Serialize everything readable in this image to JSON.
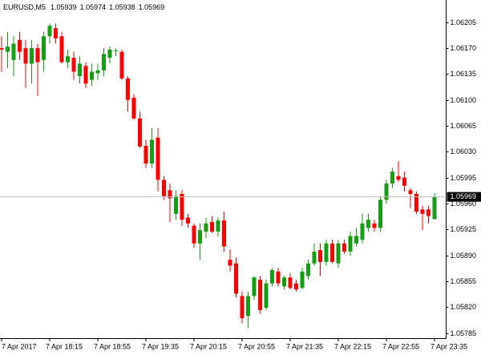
{
  "chart_data": {
    "type": "candlestick",
    "title": "EURUSD,M5",
    "up_color": "#12a012",
    "down_color": "#ff0000",
    "categories": [
      "7 Apr 2017",
      null,
      null,
      null,
      null,
      null,
      null,
      null,
      "7 Apr 18:15",
      null,
      null,
      null,
      null,
      null,
      null,
      null,
      "7 Apr 18:55",
      null,
      null,
      null,
      null,
      null,
      null,
      null,
      "7 Apr 19:35",
      null,
      null,
      null,
      null,
      null,
      null,
      null,
      "7 Apr 20:15",
      null,
      null,
      null,
      null,
      null,
      null,
      null,
      "7 Apr 20:55",
      null,
      null,
      null,
      null,
      null,
      null,
      null,
      "7 Apr 21:35",
      null,
      null,
      null,
      null,
      null,
      null,
      null,
      "7 Apr 22:15",
      null,
      null,
      null,
      null,
      null,
      null,
      null,
      "7 Apr 22:55",
      null,
      null,
      null,
      null,
      null,
      null,
      null,
      "7 Apr 23:35"
    ],
    "open": [
      1.0617,
      1.06165,
      1.06154,
      1.06181,
      1.0617,
      1.06149,
      1.0617,
      1.06154,
      1.06186,
      1.06197,
      1.06186,
      1.06151,
      1.06157,
      1.06132,
      1.06146,
      1.06127,
      1.06136,
      1.0614,
      1.06157,
      1.06166,
      1.06165,
      1.06129,
      1.06103,
      1.06075,
      1.06038,
      1.06014,
      1.06049,
      1.05992,
      1.05978,
      1.05946,
      1.05973,
      1.05941,
      1.0593,
      1.05906,
      1.05922,
      1.05935,
      1.05922,
      1.05937,
      1.05884,
      1.05879,
      1.05835,
      1.05808,
      1.05835,
      1.05857,
      1.05819,
      1.05852,
      1.05868,
      1.05848,
      1.0586,
      1.05852,
      1.05846,
      1.05862,
      1.05879,
      1.05897,
      1.05881,
      1.05906,
      1.05879,
      1.05906,
      1.05895,
      1.05906,
      1.05911,
      1.05927,
      1.05933,
      1.05927,
      1.05965,
      1.05987,
      1.05997,
      1.05995,
      1.05978,
      1.05973,
      1.05952,
      1.05952,
      1.05939
    ],
    "high": [
      1.06186,
      1.06192,
      1.06186,
      1.06192,
      1.06181,
      1.06181,
      1.06176,
      1.06192,
      1.06203,
      1.06203,
      1.06192,
      1.06168,
      1.06165,
      1.06159,
      1.06151,
      1.06149,
      1.06149,
      1.0617,
      1.06172,
      1.0617,
      1.06168,
      1.06132,
      1.06108,
      1.06084,
      1.06046,
      1.06062,
      1.06062,
      1.05997,
      1.05987,
      1.05978,
      1.05978,
      1.05946,
      1.05933,
      1.05933,
      1.05941,
      1.05943,
      1.05941,
      1.05949,
      1.05898,
      1.05887,
      1.05841,
      1.05841,
      1.05862,
      1.05862,
      1.05857,
      1.05873,
      1.05873,
      1.05862,
      1.05866,
      1.05857,
      1.05873,
      1.05884,
      1.05906,
      1.05906,
      1.05911,
      1.05911,
      1.05911,
      1.05911,
      1.05922,
      1.05927,
      1.05946,
      1.05946,
      1.05938,
      1.0597,
      1.05992,
      1.06008,
      1.06017,
      1.06003,
      1.05981,
      1.05976,
      1.05957,
      1.05957,
      1.05974
    ],
    "low": [
      1.06138,
      1.06143,
      1.06132,
      1.06154,
      1.06116,
      1.06122,
      1.06105,
      1.06138,
      1.06176,
      1.06176,
      1.06149,
      1.06143,
      1.06127,
      1.06122,
      1.06116,
      1.06119,
      1.06127,
      1.06132,
      1.06149,
      1.06159,
      1.06127,
      1.06084,
      1.06073,
      1.06035,
      1.06008,
      1.06008,
      1.05976,
      1.05965,
      1.05935,
      1.05938,
      1.0593,
      1.05927,
      1.059,
      1.05884,
      1.05913,
      1.0592,
      1.05915,
      1.05895,
      1.05868,
      1.05833,
      1.05798,
      1.05792,
      1.0583,
      1.05811,
      1.05816,
      1.05848,
      1.05848,
      1.05844,
      1.05844,
      1.05841,
      1.05844,
      1.05857,
      1.05876,
      1.05862,
      1.05876,
      1.05879,
      1.05873,
      1.05892,
      1.05889,
      1.05902,
      1.05906,
      1.05922,
      1.05922,
      1.05922,
      1.0596,
      1.05981,
      1.05989,
      1.05976,
      1.05954,
      1.05946,
      1.05924,
      1.05933,
      1.05938
    ],
    "close": [
      1.06168,
      1.06172,
      1.06176,
      1.06165,
      1.06149,
      1.0617,
      1.06151,
      1.06186,
      1.062,
      1.06183,
      1.06151,
      1.06159,
      1.06138,
      1.06149,
      1.06122,
      1.06138,
      1.0614,
      1.06162,
      1.06168,
      1.06167,
      1.06129,
      1.061,
      1.06075,
      1.06037,
      1.06014,
      1.06046,
      1.05992,
      1.0597,
      1.05967,
      1.0597,
      1.05938,
      1.05933,
      1.05906,
      1.05924,
      1.05933,
      1.05922,
      1.05937,
      1.05902,
      1.05876,
      1.05838,
      1.05805,
      1.05835,
      1.0586,
      1.05816,
      1.05852,
      1.0587,
      1.05852,
      1.0586,
      1.05846,
      1.05844,
      1.05868,
      1.05879,
      1.05895,
      1.05881,
      1.05906,
      1.05881,
      1.05906,
      1.05895,
      1.05916,
      1.05916,
      1.05933,
      1.05938,
      1.05927,
      1.05965,
      1.05987,
      1.06003,
      1.05992,
      1.05984,
      1.05973,
      1.05949,
      1.05946,
      1.05943,
      1.05969
    ],
    "ylim": [
      1.05778,
      1.06235
    ],
    "yticks": [
      1.06205,
      {
        "value": 1.0617,
        "label": "1.06170"
      },
      1.06135,
      {
        "value": 1.061,
        "label": "1.06100"
      },
      1.06065,
      {
        "value": 1.0603,
        "label": "1.06030"
      },
      1.05995,
      {
        "value": 1.0596,
        "label": "1.05960"
      },
      1.05925,
      {
        "value": 1.0589,
        "label": "1.05890"
      },
      1.05855,
      {
        "value": 1.0582,
        "label": "1.05820"
      },
      1.05785
    ]
  }
}
